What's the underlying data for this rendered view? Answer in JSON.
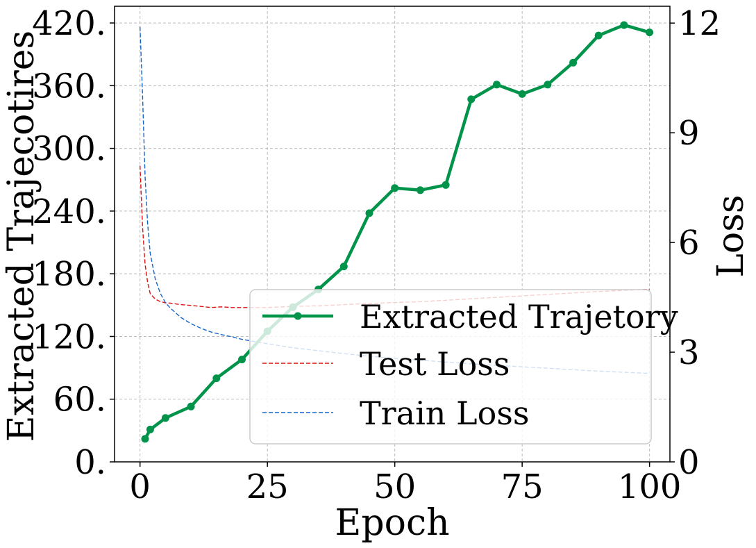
{
  "chart_data": {
    "type": "line",
    "xlabel": "Epoch",
    "ylabel_left": "Extracted Trajecotires",
    "ylabel_right": "Loss",
    "xlim": [
      -5,
      104
    ],
    "ylim_left": [
      0,
      436
    ],
    "ylim_right": [
      0,
      12.46
    ],
    "x_ticks": [
      0,
      25,
      50,
      75,
      100
    ],
    "x_tick_labels": [
      "0",
      "25",
      "50",
      "75",
      "100"
    ],
    "y_left_ticks": [
      0,
      60,
      120,
      180,
      240,
      300,
      360,
      420
    ],
    "y_left_tick_labels": [
      "0.",
      "60.",
      "120.",
      "180.",
      "240.",
      "300.",
      "360.",
      "420."
    ],
    "y_right_ticks": [
      0,
      3,
      6,
      9,
      12
    ],
    "y_right_tick_labels": [
      "0",
      "3",
      "6",
      "9",
      "12"
    ],
    "grid": true,
    "legend_position": "bottom-right",
    "series": [
      {
        "name": "Extracted Trajetory",
        "axis": "left",
        "color": "#00934a",
        "style": "solid-markers",
        "x": [
          1,
          2,
          5,
          10,
          15,
          20,
          25,
          30,
          35,
          40,
          45,
          50,
          55,
          60,
          65,
          70,
          75,
          80,
          85,
          90,
          95,
          100
        ],
        "values": [
          22,
          31,
          42,
          53,
          80,
          98,
          125,
          148,
          165,
          187,
          238,
          262,
          260,
          265,
          347,
          361,
          352,
          361,
          382,
          408,
          418,
          411
        ]
      },
      {
        "name": "Test Loss",
        "axis": "right",
        "color": "#dd1111",
        "style": "dashed",
        "x": [
          0,
          0.5,
          1,
          1.5,
          2,
          3,
          4,
          5,
          6,
          8,
          10,
          12,
          14,
          16,
          18,
          20,
          25,
          30,
          35,
          40,
          45,
          50,
          55,
          60,
          65,
          70,
          75,
          80,
          85,
          90,
          95,
          100
        ],
        "values": [
          8.1,
          6.4,
          5.4,
          4.9,
          4.6,
          4.45,
          4.38,
          4.35,
          4.34,
          4.3,
          4.28,
          4.25,
          4.22,
          4.24,
          4.22,
          4.22,
          4.22,
          4.25,
          4.27,
          4.3,
          4.33,
          4.36,
          4.38,
          4.42,
          4.46,
          4.5,
          4.54,
          4.58,
          4.62,
          4.66,
          4.69,
          4.72
        ]
      },
      {
        "name": "Train Loss",
        "axis": "right",
        "color": "#1565c8",
        "style": "dashed",
        "x": [
          0,
          0.5,
          1,
          1.5,
          2,
          3,
          4,
          5,
          6,
          8,
          10,
          12,
          14,
          16,
          18,
          20,
          25,
          30,
          35,
          40,
          45,
          50,
          55,
          60,
          65,
          70,
          75,
          80,
          85,
          90,
          95,
          100
        ],
        "values": [
          11.9,
          10.0,
          7.8,
          6.5,
          5.7,
          5.0,
          4.6,
          4.35,
          4.2,
          3.95,
          3.78,
          3.65,
          3.55,
          3.48,
          3.42,
          3.35,
          3.23,
          3.12,
          3.04,
          2.96,
          2.89,
          2.83,
          2.78,
          2.73,
          2.68,
          2.64,
          2.6,
          2.56,
          2.52,
          2.48,
          2.45,
          2.42
        ]
      }
    ]
  }
}
